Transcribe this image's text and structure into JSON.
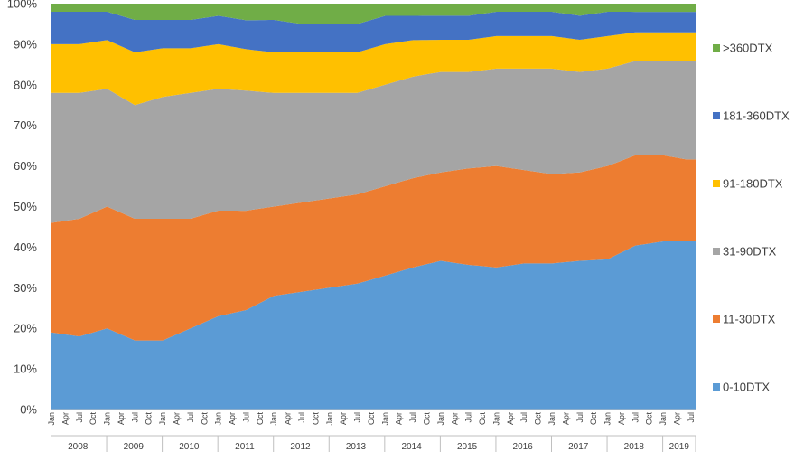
{
  "chart_data": {
    "type": "area",
    "stacked": "percent",
    "x_start_month": "2008-01",
    "x_end_month": "2019-08",
    "ylim": [
      0,
      100
    ],
    "y_ticks": [
      "0%",
      "10%",
      "20%",
      "30%",
      "40%",
      "50%",
      "60%",
      "70%",
      "80%",
      "90%",
      "100%"
    ],
    "month_tick_labels": [
      "Jan",
      "Apr",
      "Jul",
      "Oct"
    ],
    "years": [
      "2008",
      "2009",
      "2010",
      "2011",
      "2012",
      "2013",
      "2014",
      "2015",
      "2016",
      "2017",
      "2018",
      "2019"
    ],
    "legend_position": "right",
    "series": [
      {
        "name": "0-10DTX",
        "color": "#5B9BD5",
        "anchors": [
          [
            0,
            19
          ],
          [
            6,
            18
          ],
          [
            12,
            20
          ],
          [
            18,
            17
          ],
          [
            24,
            17
          ],
          [
            30,
            20
          ],
          [
            36,
            23
          ],
          [
            42,
            24
          ],
          [
            48,
            28
          ],
          [
            54,
            29
          ],
          [
            60,
            30
          ],
          [
            66,
            31
          ],
          [
            72,
            33
          ],
          [
            78,
            35
          ],
          [
            84,
            37
          ],
          [
            90,
            36
          ],
          [
            96,
            35
          ],
          [
            102,
            36
          ],
          [
            108,
            36
          ],
          [
            114,
            37
          ],
          [
            120,
            37
          ],
          [
            126,
            40
          ],
          [
            132,
            41
          ],
          [
            137,
            41
          ]
        ]
      },
      {
        "name": "11-30DTX",
        "color": "#ED7D31",
        "anchors": [
          [
            0,
            27
          ],
          [
            6,
            29
          ],
          [
            12,
            30
          ],
          [
            18,
            30
          ],
          [
            24,
            30
          ],
          [
            30,
            27
          ],
          [
            36,
            26
          ],
          [
            42,
            24
          ],
          [
            48,
            22
          ],
          [
            54,
            22
          ],
          [
            60,
            22
          ],
          [
            66,
            22
          ],
          [
            72,
            22
          ],
          [
            78,
            22
          ],
          [
            84,
            22
          ],
          [
            90,
            24
          ],
          [
            96,
            25
          ],
          [
            102,
            23
          ],
          [
            108,
            22
          ],
          [
            114,
            22
          ],
          [
            120,
            23
          ],
          [
            126,
            22
          ],
          [
            132,
            21
          ],
          [
            137,
            20
          ]
        ]
      },
      {
        "name": "31-90DTX",
        "color": "#A5A5A5",
        "anchors": [
          [
            0,
            32
          ],
          [
            6,
            31
          ],
          [
            12,
            29
          ],
          [
            18,
            28
          ],
          [
            24,
            30
          ],
          [
            30,
            31
          ],
          [
            36,
            30
          ],
          [
            42,
            29
          ],
          [
            48,
            28
          ],
          [
            54,
            27
          ],
          [
            60,
            26
          ],
          [
            66,
            25
          ],
          [
            72,
            25
          ],
          [
            78,
            25
          ],
          [
            84,
            25
          ],
          [
            90,
            24
          ],
          [
            96,
            24
          ],
          [
            102,
            25
          ],
          [
            108,
            26
          ],
          [
            114,
            25
          ],
          [
            120,
            24
          ],
          [
            126,
            23
          ],
          [
            132,
            23
          ],
          [
            137,
            24
          ]
        ]
      },
      {
        "name": "91-180DTX",
        "color": "#FFC000",
        "anchors": [
          [
            0,
            12
          ],
          [
            6,
            12
          ],
          [
            12,
            12
          ],
          [
            18,
            13
          ],
          [
            24,
            12
          ],
          [
            30,
            11
          ],
          [
            36,
            11
          ],
          [
            42,
            10
          ],
          [
            48,
            10
          ],
          [
            54,
            10
          ],
          [
            60,
            10
          ],
          [
            66,
            10
          ],
          [
            72,
            10
          ],
          [
            78,
            9
          ],
          [
            84,
            8
          ],
          [
            90,
            8
          ],
          [
            96,
            8
          ],
          [
            102,
            8
          ],
          [
            108,
            8
          ],
          [
            114,
            8
          ],
          [
            120,
            8
          ],
          [
            126,
            7
          ],
          [
            132,
            7
          ],
          [
            137,
            7
          ]
        ]
      },
      {
        "name": "181-360DTX",
        "color": "#4472C4",
        "anchors": [
          [
            0,
            8
          ],
          [
            6,
            8
          ],
          [
            12,
            7
          ],
          [
            18,
            8
          ],
          [
            24,
            7
          ],
          [
            30,
            7
          ],
          [
            36,
            7
          ],
          [
            42,
            7
          ],
          [
            48,
            8
          ],
          [
            54,
            7
          ],
          [
            60,
            7
          ],
          [
            66,
            7
          ],
          [
            72,
            7
          ],
          [
            78,
            6
          ],
          [
            84,
            6
          ],
          [
            90,
            6
          ],
          [
            96,
            6
          ],
          [
            102,
            6
          ],
          [
            108,
            6
          ],
          [
            114,
            6
          ],
          [
            120,
            6
          ],
          [
            126,
            5
          ],
          [
            132,
            5
          ],
          [
            137,
            5
          ]
        ]
      },
      {
        "name": ">360DTX",
        "color": "#70AD47",
        "anchors": [
          [
            0,
            2
          ],
          [
            6,
            2
          ],
          [
            12,
            2
          ],
          [
            18,
            4
          ],
          [
            24,
            4
          ],
          [
            30,
            4
          ],
          [
            36,
            3
          ],
          [
            42,
            4
          ],
          [
            48,
            4
          ],
          [
            54,
            5
          ],
          [
            60,
            5
          ],
          [
            66,
            5
          ],
          [
            72,
            3
          ],
          [
            78,
            3
          ],
          [
            84,
            3
          ],
          [
            90,
            3
          ],
          [
            96,
            2
          ],
          [
            102,
            2
          ],
          [
            108,
            2
          ],
          [
            114,
            3
          ],
          [
            120,
            2
          ],
          [
            126,
            2
          ],
          [
            132,
            2
          ],
          [
            137,
            2
          ]
        ]
      }
    ]
  }
}
